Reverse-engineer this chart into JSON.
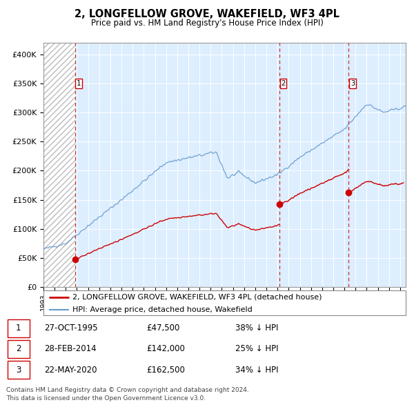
{
  "title": "2, LONGFELLOW GROVE, WAKEFIELD, WF3 4PL",
  "subtitle": "Price paid vs. HM Land Registry's House Price Index (HPI)",
  "sale_dates_decimal": [
    1995.82,
    2014.16,
    2020.39
  ],
  "sale_prices": [
    47500,
    142000,
    162500
  ],
  "sale_labels": [
    "1",
    "2",
    "3"
  ],
  "hpi_line_color": "#6699cc",
  "price_line_color": "#cc0000",
  "marker_color": "#cc0000",
  "dashed_line_color": "#cc3333",
  "legend_entries": [
    "2, LONGFELLOW GROVE, WAKEFIELD, WF3 4PL (detached house)",
    "HPI: Average price, detached house, Wakefield"
  ],
  "table_rows": [
    [
      "1",
      "27-OCT-1995",
      "£47,500",
      "38% ↓ HPI"
    ],
    [
      "2",
      "28-FEB-2014",
      "£142,000",
      "25% ↓ HPI"
    ],
    [
      "3",
      "22-MAY-2020",
      "£162,500",
      "34% ↓ HPI"
    ]
  ],
  "footnote1": "Contains HM Land Registry data © Crown copyright and database right 2024.",
  "footnote2": "This data is licensed under the Open Government Licence v3.0.",
  "ylim": [
    0,
    420000
  ],
  "ytick_vals": [
    0,
    50000,
    100000,
    150000,
    200000,
    250000,
    300000,
    350000,
    400000
  ],
  "ytick_labels": [
    "£0",
    "£50K",
    "£100K",
    "£150K",
    "£200K",
    "£250K",
    "£300K",
    "£350K",
    "£400K"
  ],
  "xmin": 1993,
  "xmax": 2025.5,
  "chart_bg": "#ddeeff",
  "hatch_color": "#bbbbbb"
}
